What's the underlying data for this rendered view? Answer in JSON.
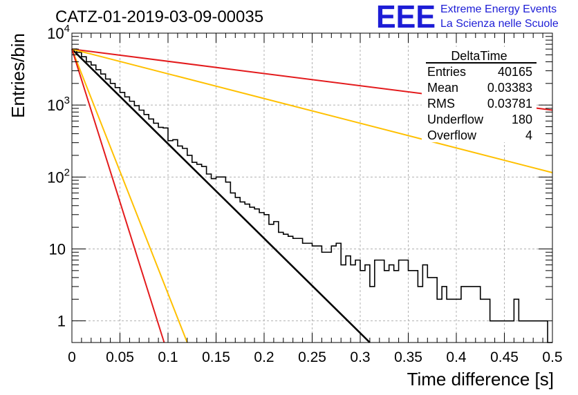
{
  "header": {
    "run_title": "CATZ-01-2019-03-09-00035",
    "logo_text": "EEE",
    "org_line1": "Extreme Energy Events",
    "org_line2": "La Scienza nelle Scuole"
  },
  "stats_box": {
    "title": "DeltaTime",
    "rows": [
      {
        "label": "Entries",
        "value": "40165"
      },
      {
        "label": "Mean",
        "value": "0.03383"
      },
      {
        "label": "RMS",
        "value": "0.03781"
      },
      {
        "label": "Underflow",
        "value": "180"
      },
      {
        "label": "Overflow",
        "value": "4"
      }
    ]
  },
  "chart_data": {
    "type": "line",
    "title": "CATZ-01-2019-03-09-00035",
    "xlabel": "Time difference [s]",
    "ylabel": "Entries/bin",
    "xlim": [
      0,
      0.5
    ],
    "ylim": [
      0.5,
      10000
    ],
    "yscale": "log",
    "grid": true,
    "x_ticks": [
      0,
      0.05,
      0.1,
      0.15,
      0.2,
      0.25,
      0.3,
      0.35,
      0.4,
      0.45,
      0.5
    ],
    "x_tick_labels": [
      "0",
      "0.05",
      "0.1",
      "0.15",
      "0.2",
      "0.25",
      "0.3",
      "0.35",
      "0.4",
      "0.45",
      "0.5"
    ],
    "y_ticks": [
      1,
      10,
      100,
      1000,
      10000
    ],
    "y_tick_labels": [
      {
        "base": "1",
        "exp": ""
      },
      {
        "base": "10",
        "exp": ""
      },
      {
        "base": "10",
        "exp": "2"
      },
      {
        "base": "10",
        "exp": "3"
      },
      {
        "base": "10",
        "exp": "4"
      }
    ],
    "histogram": {
      "bin_width": 0.005,
      "color": "#000000",
      "counts": [
        6000,
        5400,
        4700,
        4000,
        3600,
        3100,
        2700,
        2300,
        2000,
        1750,
        1500,
        1300,
        1130,
        980,
        850,
        740,
        640,
        560,
        490,
        480,
        320,
        330,
        270,
        250,
        200,
        160,
        150,
        140,
        110,
        95,
        100,
        100,
        85,
        60,
        52,
        45,
        42,
        38,
        36,
        32,
        30,
        22,
        24,
        17,
        16,
        15,
        14,
        14,
        12,
        12,
        11,
        11,
        9,
        9,
        11,
        12,
        6,
        8,
        6,
        7,
        5,
        6,
        3,
        7,
        7,
        5,
        6,
        5,
        7,
        7,
        5,
        5,
        3,
        6,
        4,
        4,
        2,
        3,
        2,
        2,
        2,
        3,
        3,
        3,
        3,
        2,
        2,
        1,
        1,
        1,
        1,
        1,
        2,
        1,
        1,
        1,
        1,
        1,
        1,
        0.5
      ],
      "clip_below": 0.5
    },
    "lines": [
      {
        "color": "#000000",
        "x": [
          0,
          0.31
        ],
        "y": [
          6000,
          0.5
        ]
      },
      {
        "color": "#e31a1c",
        "x": [
          0,
          0.5
        ],
        "y": [
          6000,
          850
        ]
      },
      {
        "color": "#ffc000",
        "x": [
          0,
          0.5
        ],
        "y": [
          6000,
          115
        ]
      },
      {
        "color": "#ffc000",
        "x": [
          0,
          0.12
        ],
        "y": [
          6000,
          0.5
        ]
      },
      {
        "color": "#e31a1c",
        "x": [
          0,
          0.096
        ],
        "y": [
          6000,
          0.5
        ]
      }
    ]
  }
}
